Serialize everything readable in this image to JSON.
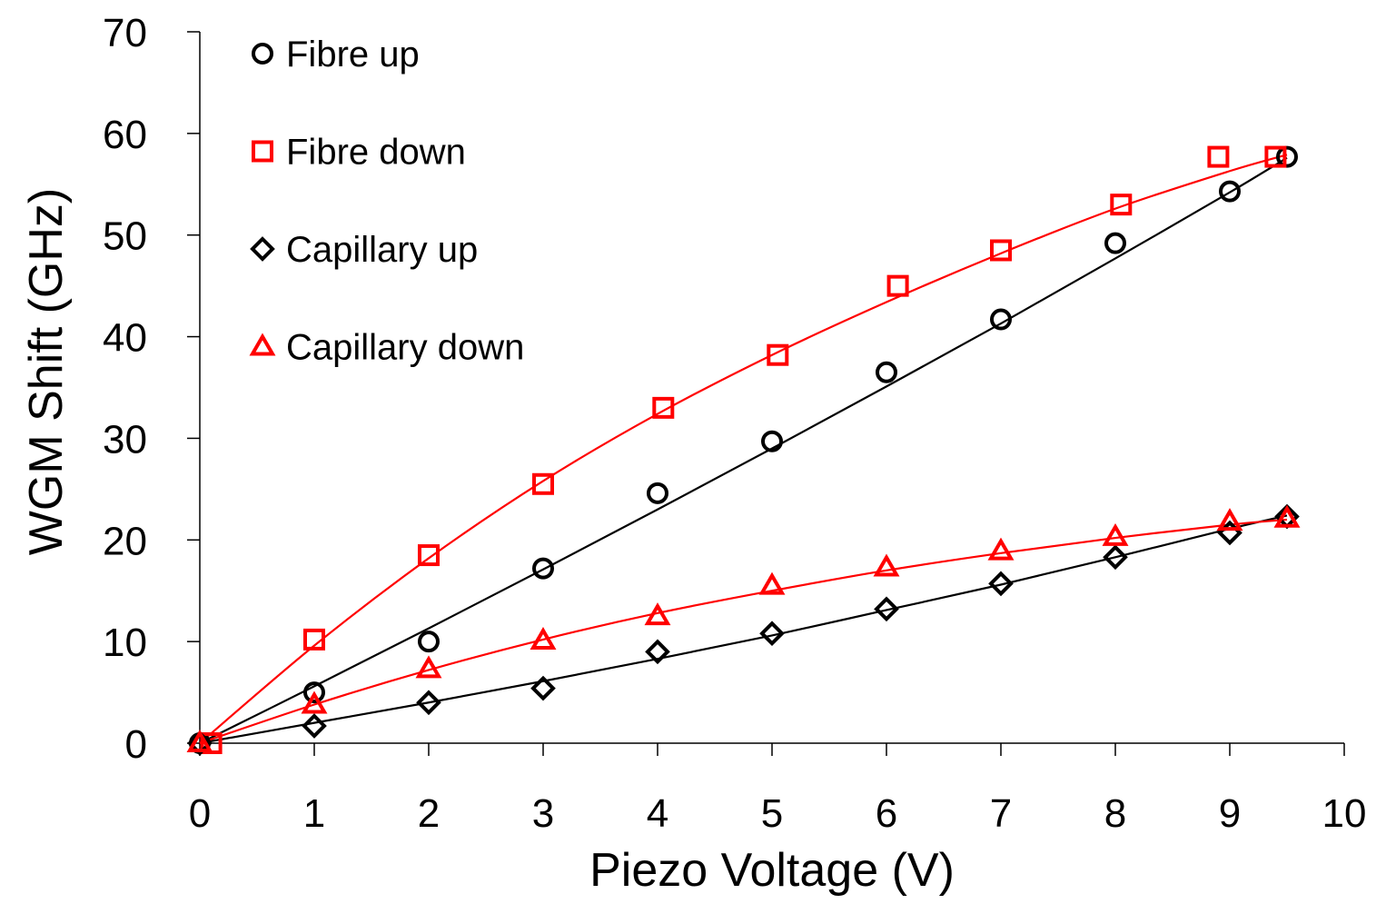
{
  "chart_data": {
    "type": "scatter",
    "title": "",
    "xlabel": "Piezo Voltage (V)",
    "ylabel": "WGM Shift (GHz)",
    "xlim": [
      0,
      10
    ],
    "ylim": [
      0,
      70
    ],
    "xticks": [
      0,
      1,
      2,
      3,
      4,
      5,
      6,
      7,
      8,
      9,
      10
    ],
    "yticks": [
      0,
      10,
      20,
      30,
      40,
      50,
      60,
      70
    ],
    "grid": false,
    "legend_position": "top-left",
    "series": [
      {
        "name": "Fibre up",
        "marker": "circle",
        "color": "#000000",
        "x": [
          0,
          1,
          2,
          3,
          4,
          5,
          6,
          7,
          8,
          9,
          9.5
        ],
        "y": [
          0,
          5.0,
          10.0,
          17.2,
          24.6,
          29.7,
          36.5,
          41.7,
          49.2,
          54.3,
          57.7
        ],
        "fit": [
          [
            0,
            0
          ],
          [
            1,
            5.6
          ],
          [
            2,
            11.3
          ],
          [
            3,
            17.1
          ],
          [
            4,
            23.0
          ],
          [
            5,
            29.0
          ],
          [
            6,
            35.1
          ],
          [
            7,
            41.3
          ],
          [
            8,
            47.7
          ],
          [
            9,
            54.2
          ],
          [
            9.5,
            57.6
          ]
        ]
      },
      {
        "name": "Fibre down",
        "marker": "square",
        "color": "#ff0000",
        "x": [
          0.1,
          1,
          2,
          3,
          4.05,
          5.05,
          6.1,
          7,
          8.05,
          8.9,
          9.4
        ],
        "y": [
          0,
          10.2,
          18.5,
          25.5,
          33.0,
          38.2,
          45.0,
          48.5,
          53.0,
          57.7,
          57.7
        ],
        "fit": [
          [
            0,
            0
          ],
          [
            1,
            9.6
          ],
          [
            2,
            18.2
          ],
          [
            3,
            25.8
          ],
          [
            4,
            32.4
          ],
          [
            5,
            38.2
          ],
          [
            6,
            43.4
          ],
          [
            7,
            48.2
          ],
          [
            8,
            52.6
          ],
          [
            9,
            56.3
          ],
          [
            9.5,
            57.9
          ]
        ]
      },
      {
        "name": "Capillary up",
        "marker": "diamond",
        "color": "#000000",
        "x": [
          0,
          1,
          2,
          3,
          4,
          5,
          6,
          7,
          8,
          9,
          9.5
        ],
        "y": [
          0,
          1.7,
          4.0,
          5.4,
          9.0,
          10.8,
          13.2,
          15.7,
          18.3,
          20.7,
          22.3
        ],
        "fit": [
          [
            0,
            0
          ],
          [
            1,
            2.0
          ],
          [
            2,
            4.0
          ],
          [
            3,
            6.1
          ],
          [
            4,
            8.3
          ],
          [
            5,
            10.6
          ],
          [
            6,
            13.1
          ],
          [
            7,
            15.6
          ],
          [
            8,
            18.3
          ],
          [
            9,
            21.1
          ],
          [
            9.5,
            22.4
          ]
        ]
      },
      {
        "name": "Capillary down",
        "marker": "triangle",
        "color": "#ff0000",
        "x": [
          0,
          1,
          2,
          3,
          4,
          5,
          6,
          7,
          8,
          9,
          9.5
        ],
        "y": [
          0,
          3.8,
          7.3,
          10.1,
          12.5,
          15.5,
          17.3,
          18.9,
          20.3,
          21.8,
          22.1
        ],
        "fit": [
          [
            0,
            0
          ],
          [
            1,
            3.8
          ],
          [
            2,
            7.2
          ],
          [
            3,
            10.2
          ],
          [
            4,
            12.8
          ],
          [
            5,
            15.0
          ],
          [
            6,
            17.0
          ],
          [
            7,
            18.7
          ],
          [
            8,
            20.2
          ],
          [
            9,
            21.5
          ],
          [
            9.5,
            22.0
          ]
        ]
      }
    ]
  }
}
